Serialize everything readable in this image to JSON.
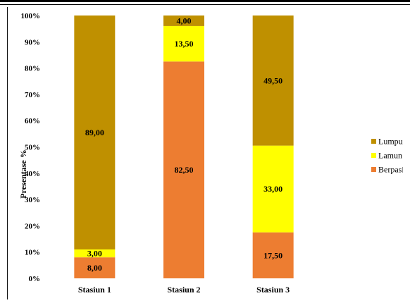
{
  "chart_data": {
    "type": "bar",
    "stacked": true,
    "percent": true,
    "categories": [
      "Stasiun 1",
      "Stasiun 2",
      "Stasiun 3"
    ],
    "series": [
      {
        "name": "Berpasir",
        "color": "#ED7D31",
        "values": [
          8.0,
          82.5,
          17.5
        ],
        "labels": [
          "8,00",
          "82,50",
          "17,50"
        ]
      },
      {
        "name": "Lamun",
        "color": "#FFFF00",
        "values": [
          3.0,
          13.5,
          33.0
        ],
        "labels": [
          "3,00",
          "13,50",
          "33,00"
        ]
      },
      {
        "name": "Lumpur",
        "color": "#BF9000",
        "values": [
          89.0,
          4.0,
          49.5
        ],
        "labels": [
          "89,00",
          "4,00",
          "49,50"
        ]
      }
    ],
    "legend_order": [
      "Lumpur",
      "Lamun",
      "Berpasir"
    ],
    "title": "",
    "xlabel": "",
    "ylabel": "Presentase %",
    "ylim": [
      0,
      100
    ],
    "yticks": [
      "0%",
      "10%",
      "20%",
      "30%",
      "40%",
      "50%",
      "60%",
      "70%",
      "80%",
      "90%",
      "100%"
    ],
    "grid": false,
    "legend_position": "right"
  }
}
